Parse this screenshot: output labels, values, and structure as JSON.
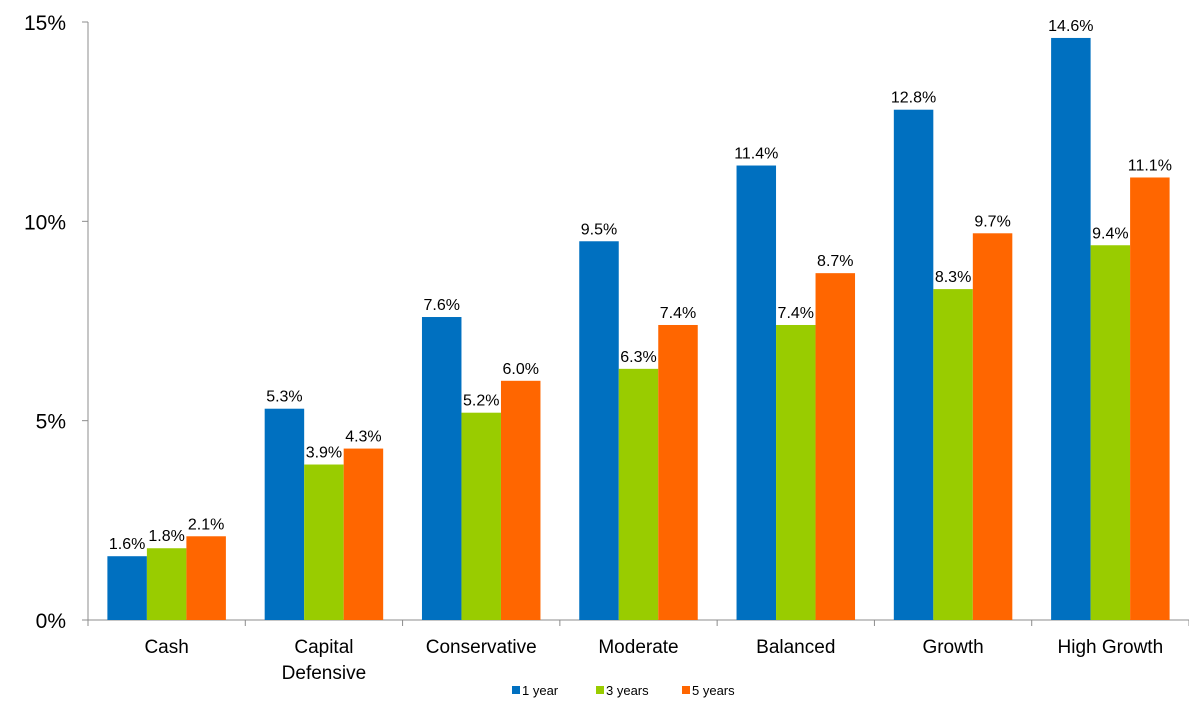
{
  "chart_data": {
    "type": "bar",
    "title": "",
    "xlabel": "",
    "ylabel": "",
    "ylim": [
      0,
      15
    ],
    "y_ticks": [
      {
        "value": 0,
        "label": "0%"
      },
      {
        "value": 5,
        "label": "5%"
      },
      {
        "value": 10,
        "label": "10%"
      },
      {
        "value": 15,
        "label": "15%"
      }
    ],
    "categories": [
      [
        "Cash"
      ],
      [
        "Capital",
        "Defensive"
      ],
      [
        "Conservative"
      ],
      [
        "Moderate"
      ],
      [
        "Balanced"
      ],
      [
        "Growth"
      ],
      [
        "High Growth"
      ]
    ],
    "series": [
      {
        "name": "1 year",
        "color": "#0070C0",
        "values": [
          1.6,
          5.3,
          7.6,
          9.5,
          11.4,
          12.8,
          14.6
        ],
        "labels": [
          "1.6%",
          "5.3%",
          "7.6%",
          "9.5%",
          "11.4%",
          "12.8%",
          "14.6%"
        ]
      },
      {
        "name": "3 years",
        "color": "#99CC00",
        "values": [
          1.8,
          3.9,
          5.2,
          6.3,
          7.4,
          8.3,
          9.4
        ],
        "labels": [
          "1.8%",
          "3.9%",
          "5.2%",
          "6.3%",
          "7.4%",
          "8.3%",
          "9.4%"
        ]
      },
      {
        "name": "5 years",
        "color": "#FF6600",
        "values": [
          2.1,
          4.3,
          6.0,
          7.4,
          8.7,
          9.7,
          11.1
        ],
        "labels": [
          "2.1%",
          "4.3%",
          "6.0%",
          "7.4%",
          "8.7%",
          "9.7%",
          "11.1%"
        ]
      }
    ],
    "grid": false,
    "legend": "bottom"
  }
}
